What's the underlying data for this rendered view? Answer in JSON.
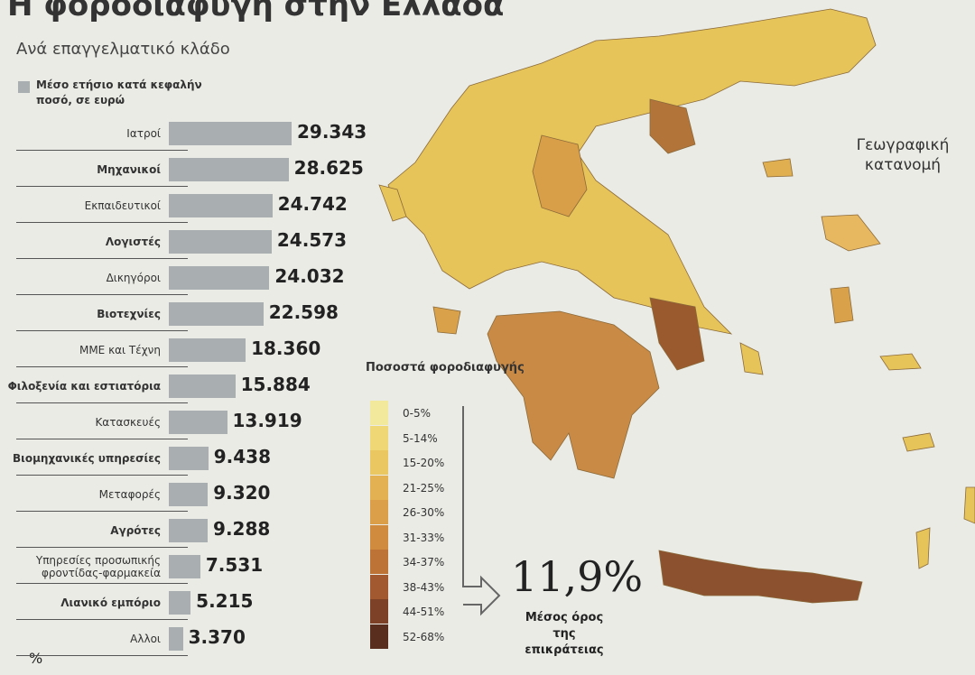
{
  "title": "Η φοροδιαφυγή στην Ελλάδα",
  "subtitle": "Ανά επαγγελματικό κλάδο",
  "footer": "%",
  "chart_data": {
    "type": "bar",
    "orientation": "horizontal",
    "categories": [
      "Ιατροί",
      "Μηχανικοί",
      "Εκπαιδευτικοί",
      "Λογιστές",
      "Δικηγόροι",
      "Βιοτεχνίες",
      "ΜΜΕ και Τέχνη",
      "Φιλοξενία και εστιατόρια",
      "Κατασκευές",
      "Βιομηχανικές υπηρεσίες",
      "Μεταφορές",
      "Αγρότες",
      "Υπηρεσίες προσωπικής φροντίδας-φαρμακεία",
      "Λιανικό εμπόριο",
      "Αλλοι"
    ],
    "series": [
      {
        "name": "Μέσο ετήσιο κατά κεφαλήν ποσό, σε ευρώ",
        "color": "#a9aeb0",
        "values": [
          29343,
          28625,
          24742,
          24573,
          24032,
          22598,
          18360,
          15884,
          13919,
          9438,
          9320,
          9288,
          7531,
          5215,
          3370
        ],
        "value_labels": [
          "29.343",
          "28.625",
          "24.742",
          "24.573",
          "24.032",
          "22.598",
          "18.360",
          "15.884",
          "13.919",
          "9.438",
          "9.320",
          "9.288",
          "7.531",
          "5.215",
          "3.370"
        ]
      }
    ]
  },
  "map": {
    "label": "Γεωγραφική κατανομή",
    "legend_title": "Ποσοστά φοροδιαφυγής",
    "classes": [
      {
        "label": "0-5%",
        "color": "#f2e99c"
      },
      {
        "label": "5-14%",
        "color": "#efd775"
      },
      {
        "label": "15-20%",
        "color": "#eac761"
      },
      {
        "label": "21-25%",
        "color": "#e4b152"
      },
      {
        "label": "26-30%",
        "color": "#dc9f49"
      },
      {
        "label": "31-33%",
        "color": "#d18b3f"
      },
      {
        "label": "34-37%",
        "color": "#bd7236"
      },
      {
        "label": "38-43%",
        "color": "#a2592f"
      },
      {
        "label": "44-51%",
        "color": "#7d4127"
      },
      {
        "label": "52-68%",
        "color": "#5a2e1f"
      }
    ],
    "average": {
      "value": 11.9,
      "label": "11,9%",
      "caption": "Μέσος όρος της επικράτειας"
    }
  }
}
